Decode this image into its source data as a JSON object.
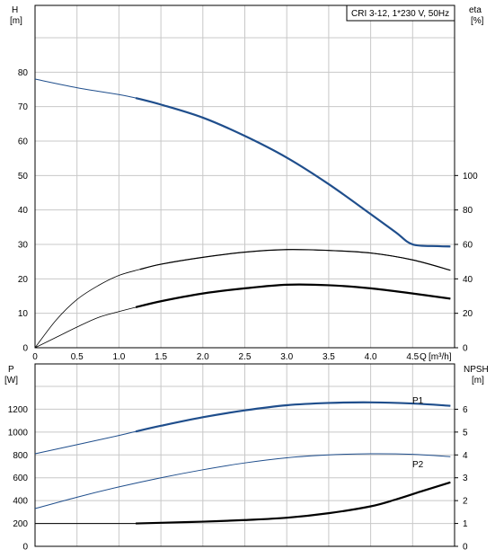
{
  "chart_data": {
    "type": "line",
    "title": "CRI 3-12, 1*230 V, 50Hz",
    "colors": {
      "head": "#1f4e8c",
      "power": "#1f4e8c",
      "eta": "#000000",
      "npsh": "#000000",
      "grid": "#c8c8c8"
    },
    "top": {
      "x_label": "Q",
      "x_unit": "[m³/h]",
      "xlim": [
        0,
        5
      ],
      "x_ticks": [
        "0",
        "0.5",
        "1.0",
        "1.5",
        "2.0",
        "2.5",
        "3.0",
        "3.5",
        "4.0",
        "4.5"
      ],
      "left_label": "H",
      "left_unit": "[m]",
      "left_ylim": [
        0,
        90
      ],
      "left_ticks": [
        "0",
        "10",
        "20",
        "30",
        "40",
        "50",
        "60",
        "70",
        "80"
      ],
      "right_label": "eta",
      "right_unit": "[%]",
      "right_ylim": [
        0,
        180
      ],
      "right_ticks": [
        "0",
        "20",
        "40",
        "60",
        "80",
        "100"
      ],
      "series": [
        {
          "key": "head",
          "axis": "left",
          "x": [
            0,
            0.5,
            1.0,
            1.2,
            1.5,
            2.0,
            2.5,
            3.0,
            3.5,
            4.0,
            4.3,
            4.5,
            4.8,
            4.95
          ],
          "y": [
            78,
            75.5,
            73.5,
            72.5,
            70.6,
            66.8,
            61.5,
            55.2,
            47.5,
            38.8,
            33.5,
            30,
            29.5,
            29.4
          ]
        },
        {
          "key": "eta_outer",
          "axis": "right",
          "x": [
            0,
            0.25,
            0.5,
            0.75,
            1.0,
            1.25,
            1.5,
            2.0,
            2.5,
            3.0,
            3.5,
            4.0,
            4.5,
            4.95
          ],
          "y": [
            0,
            16,
            28,
            36,
            42,
            45.5,
            48.5,
            52.5,
            55.5,
            57,
            56.5,
            55,
            51,
            45
          ]
        },
        {
          "key": "eta",
          "axis": "right",
          "x": [
            0,
            0.25,
            0.5,
            0.75,
            1.0,
            1.2,
            1.5,
            2.0,
            2.5,
            3.0,
            3.5,
            4.0,
            4.5,
            4.95
          ],
          "y": [
            0,
            6,
            12,
            17.5,
            21,
            23.5,
            27,
            31.5,
            34.5,
            36.6,
            36.3,
            34.5,
            31.5,
            28.5
          ]
        }
      ]
    },
    "bottom": {
      "left_label": "P",
      "left_unit": "[W]",
      "left_ylim": [
        0,
        1400
      ],
      "left_ticks": [
        "0",
        "200",
        "400",
        "600",
        "800",
        "1000",
        "1200"
      ],
      "right_label": "NPSH",
      "right_unit": "[m]",
      "right_ylim": [
        0,
        7
      ],
      "right_ticks": [
        "0",
        "1",
        "2",
        "3",
        "4",
        "5",
        "6"
      ],
      "series": [
        {
          "key": "P1",
          "name": "P1",
          "axis": "left",
          "x": [
            0,
            0.5,
            1.0,
            1.2,
            1.5,
            2.0,
            2.5,
            3.0,
            3.5,
            4.0,
            4.5,
            4.95
          ],
          "y": [
            810,
            890,
            970,
            1005,
            1055,
            1130,
            1190,
            1235,
            1255,
            1260,
            1250,
            1230
          ]
        },
        {
          "key": "P2",
          "name": "P2",
          "axis": "left",
          "x": [
            0,
            0.5,
            1.0,
            1.5,
            2.0,
            2.5,
            3.0,
            3.5,
            4.0,
            4.5,
            4.95
          ],
          "y": [
            330,
            430,
            520,
            600,
            670,
            730,
            775,
            800,
            810,
            805,
            785
          ]
        },
        {
          "key": "npsh",
          "axis": "right",
          "x": [
            0,
            0.5,
            1.0,
            1.2,
            1.5,
            2.0,
            2.5,
            3.0,
            3.5,
            4.0,
            4.3,
            4.6,
            4.95
          ],
          "y": [
            1.0,
            1.0,
            1.0,
            1.0,
            1.03,
            1.08,
            1.15,
            1.25,
            1.45,
            1.75,
            2.05,
            2.4,
            2.8
          ]
        }
      ]
    }
  }
}
